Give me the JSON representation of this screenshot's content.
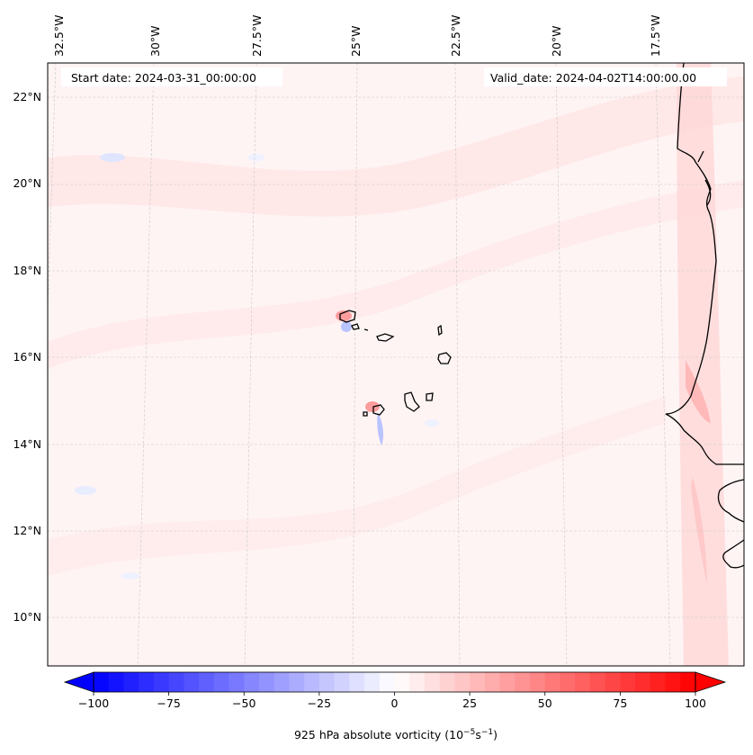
{
  "map": {
    "start_date_label": "Start date: 2024-03-31_00:00:00",
    "valid_date_label": "Valid_date: 2024-04-02T14:00:00.00",
    "lon_labels": [
      "32.5°W",
      "30°W",
      "27.5°W",
      "25°W",
      "22.5°W",
      "20°W",
      "17.5°W"
    ],
    "lat_labels": [
      "22°N",
      "20°N",
      "18°N",
      "16°N",
      "14°N",
      "12°N",
      "10°N"
    ],
    "gridlines": "dashed",
    "background_color": "#fff3f3"
  },
  "colorbar": {
    "title": "925 hPa absolute vorticity (10",
    "title_exp1": "−5",
    "title_mid": "s",
    "title_exp2": "−1",
    "title_end": ")",
    "tick_labels": [
      "−100",
      "−75",
      "−50",
      "−25",
      "0",
      "25",
      "50",
      "75",
      "100"
    ],
    "min": -100,
    "max": 100,
    "levels": 40,
    "colormap": "bwr",
    "extend": "both"
  }
}
